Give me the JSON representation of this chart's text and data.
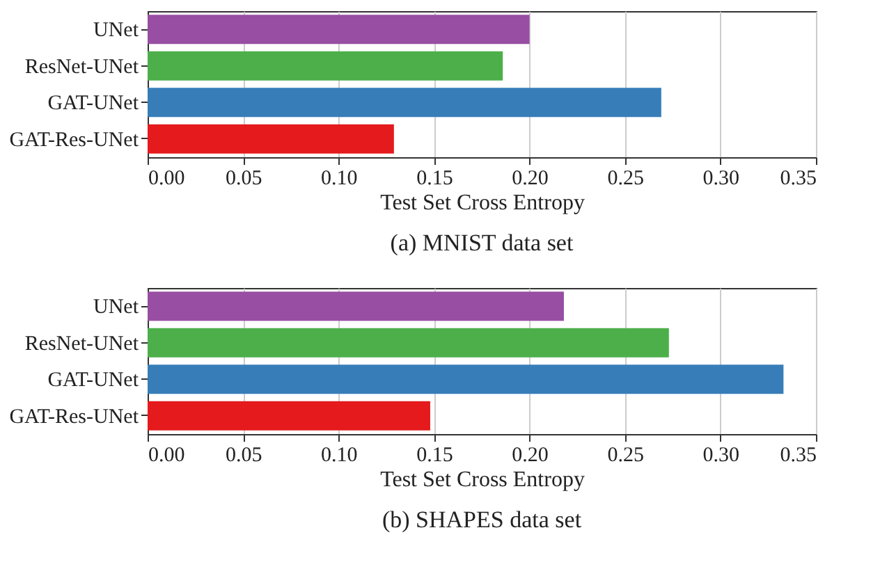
{
  "chart_data": [
    {
      "type": "bar",
      "orientation": "horizontal",
      "title": "(a) MNIST data set",
      "xlabel": "Test Set Cross Entropy",
      "categories": [
        "UNet",
        "ResNet-UNet",
        "GAT-UNet",
        "GAT-Res-UNet"
      ],
      "values": [
        0.2,
        0.186,
        0.269,
        0.129
      ],
      "colors": [
        "#984ea3",
        "#4daf4a",
        "#377eb8",
        "#e41a1c"
      ],
      "xlim": [
        0,
        0.35
      ],
      "xticks": [
        {
          "value": 0,
          "label": "0.00"
        },
        {
          "value": 0.05,
          "label": "0.05"
        },
        {
          "value": 0.1,
          "label": "0.10"
        },
        {
          "value": 0.15,
          "label": "0.15"
        },
        {
          "value": 0.2,
          "label": "0.20"
        },
        {
          "value": 0.25,
          "label": "0.25"
        },
        {
          "value": 0.3,
          "label": "0.30"
        },
        {
          "value": 0.35,
          "label": "0.35"
        }
      ],
      "grid": "x"
    },
    {
      "type": "bar",
      "orientation": "horizontal",
      "title": "(b) SHAPES data set",
      "xlabel": "Test Set Cross Entropy",
      "categories": [
        "UNet",
        "ResNet-UNet",
        "GAT-UNet",
        "GAT-Res-UNet"
      ],
      "values": [
        0.218,
        0.273,
        0.333,
        0.148
      ],
      "colors": [
        "#984ea3",
        "#4daf4a",
        "#377eb8",
        "#e41a1c"
      ],
      "xlim": [
        0,
        0.35
      ],
      "xticks": [
        {
          "value": 0,
          "label": "0.00"
        },
        {
          "value": 0.05,
          "label": "0.05"
        },
        {
          "value": 0.1,
          "label": "0.10"
        },
        {
          "value": 0.15,
          "label": "0.15"
        },
        {
          "value": 0.2,
          "label": "0.20"
        },
        {
          "value": 0.25,
          "label": "0.25"
        },
        {
          "value": 0.3,
          "label": "0.30"
        },
        {
          "value": 0.35,
          "label": "0.35"
        }
      ],
      "grid": "x"
    }
  ]
}
